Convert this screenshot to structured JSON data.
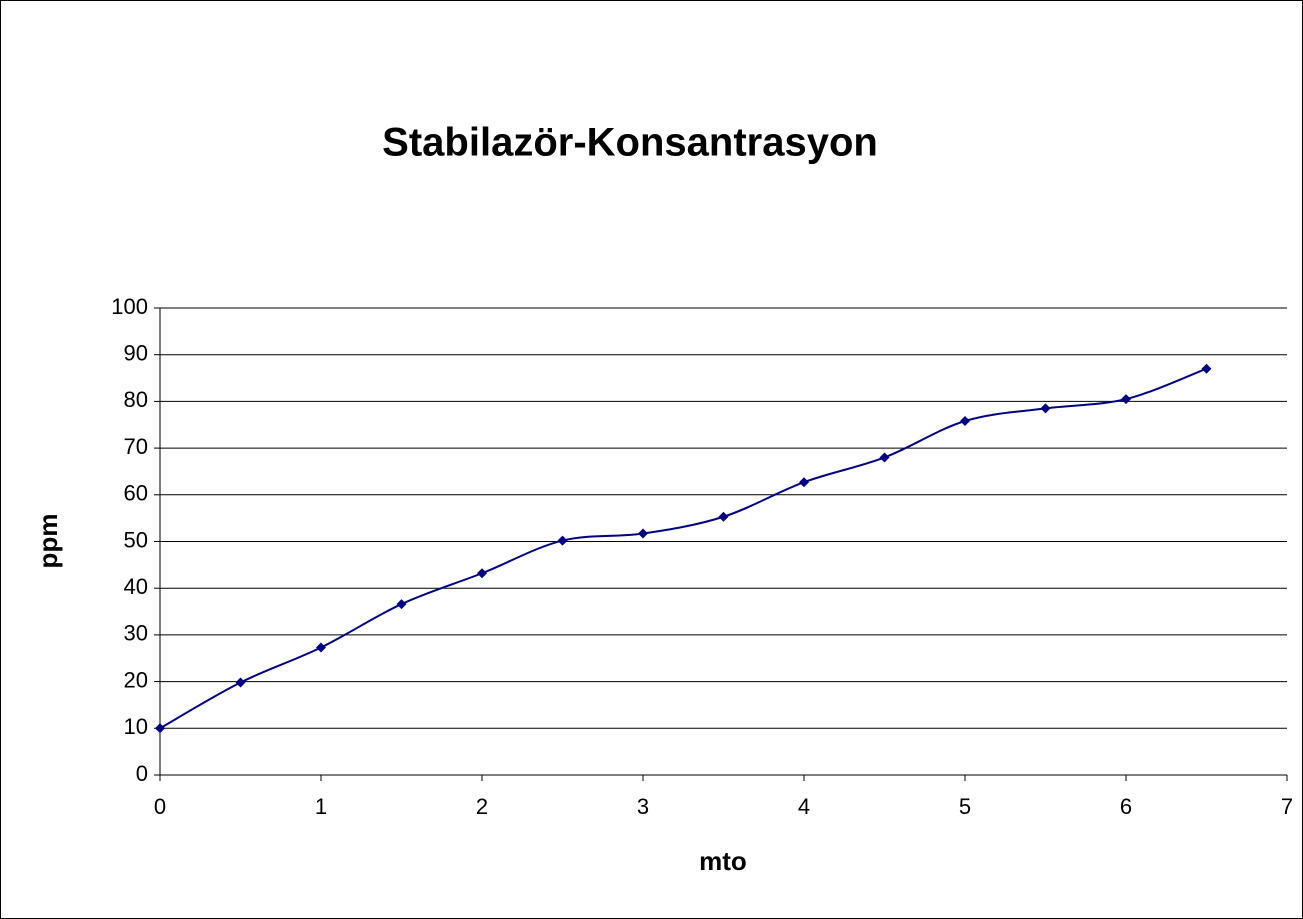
{
  "chart_data": {
    "type": "line",
    "smooth": true,
    "title": "Stabilazör-Konsantrasyon",
    "x_label": "mto",
    "y_label": "ppm",
    "series": [
      {
        "name": "ppm",
        "color": "#000080",
        "x": [
          0,
          0.5,
          1,
          1.5,
          2,
          2.5,
          3,
          3.5,
          4,
          4.5,
          5,
          5.5,
          6,
          6.5
        ],
        "values": [
          10,
          19.8,
          27.3,
          36.6,
          43.2,
          50.2,
          51.7,
          55.3,
          62.7,
          68,
          75.8,
          78.5,
          80.5,
          87
        ]
      }
    ],
    "xlim": [
      0,
      7
    ],
    "xticks": [
      0,
      1,
      2,
      3,
      4,
      5,
      6,
      7
    ],
    "ylim": [
      0,
      100
    ],
    "yticks": [
      0,
      10,
      20,
      30,
      40,
      50,
      60,
      70,
      80,
      90,
      100
    ],
    "grid": true,
    "legend": false
  }
}
